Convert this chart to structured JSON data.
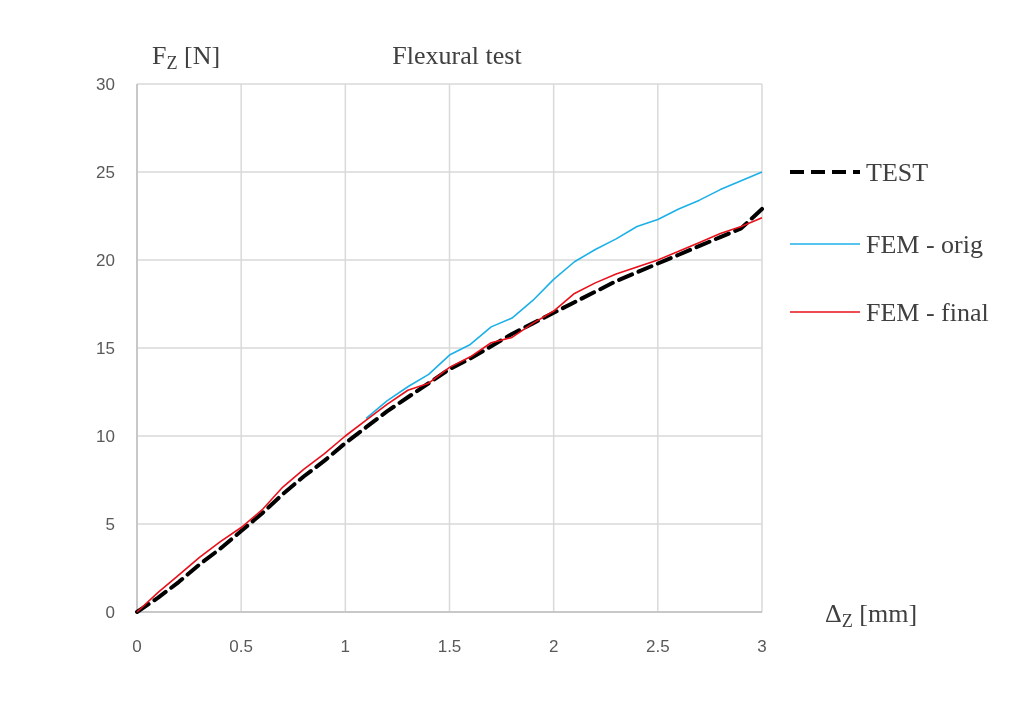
{
  "chart_data": {
    "type": "line",
    "title": "Flexural test",
    "xlabel": "Δ$_{Z}$ [mm]",
    "ylabel": "F$_{Z}$ [N]",
    "x": [
      0,
      0.1,
      0.2,
      0.3,
      0.4,
      0.5,
      0.6,
      0.7,
      0.8,
      0.9,
      1.0,
      1.1,
      1.2,
      1.3,
      1.4,
      1.5,
      1.6,
      1.7,
      1.8,
      1.9,
      2.0,
      2.1,
      2.2,
      2.3,
      2.4,
      2.5,
      2.6,
      2.7,
      2.8,
      2.9,
      3.0
    ],
    "series": [
      {
        "name": "TEST",
        "color": "#000000",
        "line_style": "dashed",
        "values": [
          0,
          0.8,
          1.7,
          2.7,
          3.6,
          4.6,
          5.6,
          6.7,
          7.7,
          8.6,
          9.6,
          10.5,
          11.4,
          12.2,
          13.0,
          13.8,
          14.4,
          15.1,
          15.8,
          16.4,
          17.0,
          17.6,
          18.2,
          18.8,
          19.3,
          19.8,
          20.3,
          20.8,
          21.3,
          21.8,
          22.9
        ]
      },
      {
        "name": "FEM - orig",
        "color": "#1cb0e8",
        "line_style": "solid",
        "values": [
          null,
          null,
          null,
          null,
          null,
          null,
          null,
          null,
          null,
          null,
          null,
          11.0,
          12.0,
          12.8,
          13.5,
          14.6,
          15.2,
          16.2,
          16.7,
          17.7,
          18.9,
          19.9,
          20.6,
          21.2,
          21.9,
          22.3,
          22.9,
          23.4,
          24.0,
          24.5,
          25.0
        ]
      },
      {
        "name": "FEM - final",
        "color": "#e8101a",
        "line_style": "solid",
        "values": [
          0,
          1.1,
          2.1,
          3.1,
          4.0,
          4.8,
          5.8,
          7.1,
          8.1,
          9.0,
          10.0,
          10.9,
          11.8,
          12.6,
          13.0,
          13.9,
          14.5,
          15.3,
          15.6,
          16.4,
          17.1,
          18.1,
          18.7,
          19.2,
          19.6,
          20.0,
          20.5,
          21.0,
          21.5,
          21.9,
          22.4
        ]
      }
    ],
    "xlim": [
      0,
      3
    ],
    "xticks": [
      0,
      0.5,
      1,
      1.5,
      2,
      2.5,
      3
    ],
    "ylim": [
      0,
      30
    ],
    "yticks": [
      0,
      5,
      10,
      15,
      20,
      25,
      30
    ],
    "grid": true,
    "legend": "right",
    "marker": "none"
  }
}
